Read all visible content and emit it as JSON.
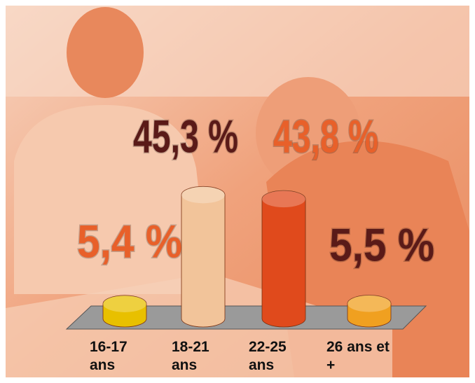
{
  "chart_data": {
    "type": "bar",
    "categories": [
      "16-17 ans",
      "18-21 ans",
      "22-25 ans",
      "26 ans et +"
    ],
    "values": [
      5.4,
      45.3,
      43.8,
      5.5
    ],
    "value_labels": [
      "5,4 %",
      "45,3 %",
      "43,8 %",
      "5,5 %"
    ],
    "colors": [
      "#e8c000",
      "#f2c49a",
      "#e04a1c",
      "#f0a020"
    ],
    "label_colors": [
      "#e8602a",
      "#5a1a18",
      "#e8602a",
      "#5a1a18"
    ]
  }
}
